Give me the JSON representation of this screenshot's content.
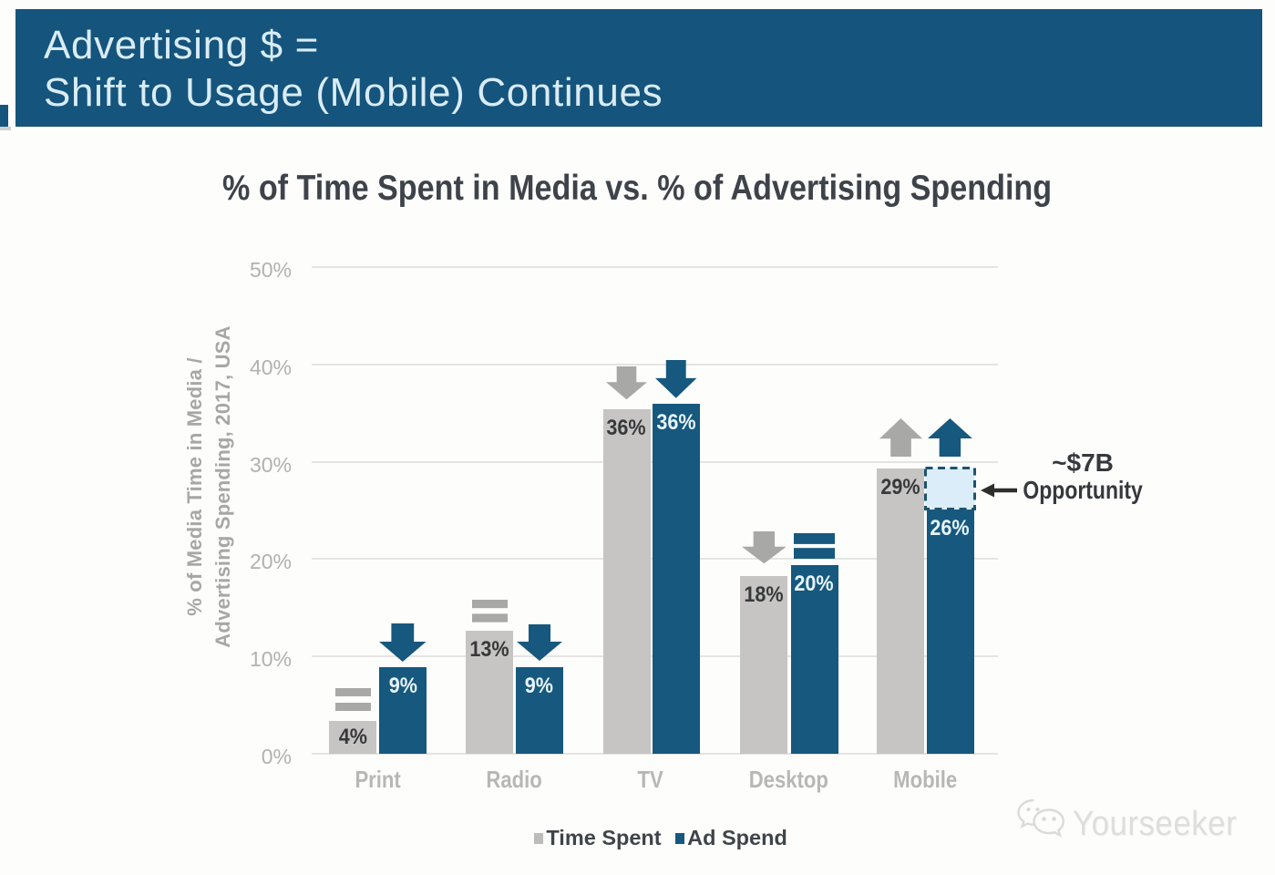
{
  "header": {
    "line1": "Advertising $ =",
    "line2": "Shift to Usage (Mobile) Continues"
  },
  "chart_data": {
    "type": "bar",
    "title": "% of Time Spent in Media vs. % of Advertising Spending",
    "ylabel_lines": [
      "% of Media Time in Media /",
      "Advertising Spending, 2017, USA"
    ],
    "categories": [
      "Print",
      "Radio",
      "TV",
      "Desktop",
      "Mobile"
    ],
    "series": [
      {
        "name": "Time Spent",
        "color": "#c6c5c3",
        "values": [
          4,
          13,
          36,
          18,
          29
        ],
        "labels": [
          "4%",
          "13%",
          "36%",
          "18%",
          "29%"
        ],
        "trend": [
          "flat",
          "flat",
          "down",
          "down",
          "up"
        ],
        "trend_color": "#a8a8a6",
        "label_color": "#37393b"
      },
      {
        "name": "Ad Spend",
        "color": "#16587e",
        "values": [
          9,
          9,
          36,
          20,
          26
        ],
        "labels": [
          "9%",
          "9%",
          "36%",
          "20%",
          "26%"
        ],
        "trend": [
          "down",
          "down",
          "down",
          "flat",
          "up"
        ],
        "trend_color": "#16587e",
        "label_color": "#e8f4fb"
      }
    ],
    "y_ticks": [
      "0%",
      "10%",
      "20%",
      "30%",
      "40%",
      "50%"
    ],
    "ylim": [
      0,
      50
    ],
    "grid": true,
    "legend_position": "bottom",
    "annotation": {
      "line1": "~$7B",
      "line2": "Opportunity",
      "points_to": "gap between Mobile Ad Spend 26% and Mobile Time Spent 29%"
    },
    "opportunity_box": {
      "category": "Mobile",
      "from_value": 26,
      "to_value": 29,
      "fill": "#daedf8",
      "border": "#1d5370"
    }
  },
  "legend": {
    "items": [
      {
        "label": "Time Spent",
        "color": "#bcbcba"
      },
      {
        "label": "Ad Spend",
        "color": "#16587e"
      }
    ]
  },
  "watermark": {
    "text": "Yourseeker",
    "icon": "wechat-icon"
  },
  "colors": {
    "banner_bg": "#15547c",
    "banner_text": "#d9ecf6",
    "title_text": "#3e434a",
    "grid_line": "#e4e4e2",
    "axis_text": "#b1b1af"
  }
}
